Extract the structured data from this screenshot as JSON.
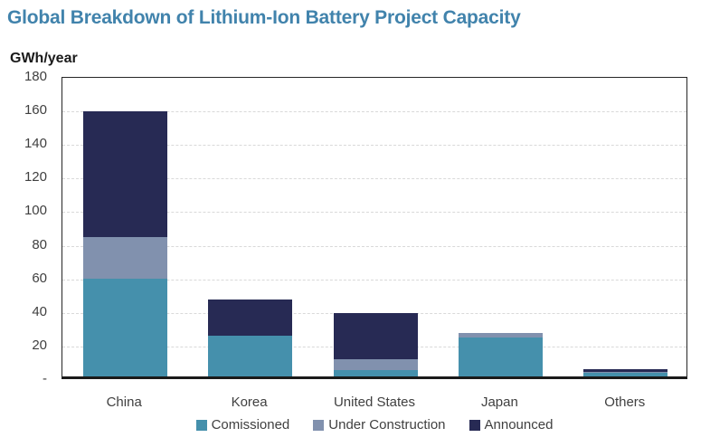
{
  "title": "Global Breakdown of Lithium-Ion Battery Project Capacity",
  "colors": {
    "title": "#4183AC",
    "commissioned": "#4590AC",
    "under_construction": "#8191AE",
    "announced": "#272A54",
    "axis_text": "#404040",
    "gridline": "#D9D9D9",
    "border": "#262626"
  },
  "chart_data": {
    "type": "bar",
    "stacked": true,
    "title": "Global Breakdown of Lithium-Ion Battery Project Capacity",
    "ylabel": "GWh/year",
    "xlabel": "",
    "ylim": [
      0,
      180
    ],
    "ytick_step": 20,
    "yticks": [
      "180",
      "160",
      "140",
      "120",
      "100",
      "80",
      "60",
      "40",
      "20",
      "-"
    ],
    "grid": "horizontal-dashed",
    "legend_position": "bottom",
    "categories": [
      "China",
      "Korea",
      "United States",
      "Japan",
      "Others"
    ],
    "series": [
      {
        "name": "Comissioned",
        "color_key": "commissioned",
        "values": [
          58,
          24,
          4,
          23,
          2
        ]
      },
      {
        "name": "Under Construction",
        "color_key": "under_construction",
        "values": [
          25,
          0,
          6,
          3,
          0.5
        ]
      },
      {
        "name": "Announced",
        "color_key": "announced",
        "values": [
          75,
          22,
          28,
          0,
          2
        ]
      }
    ]
  }
}
